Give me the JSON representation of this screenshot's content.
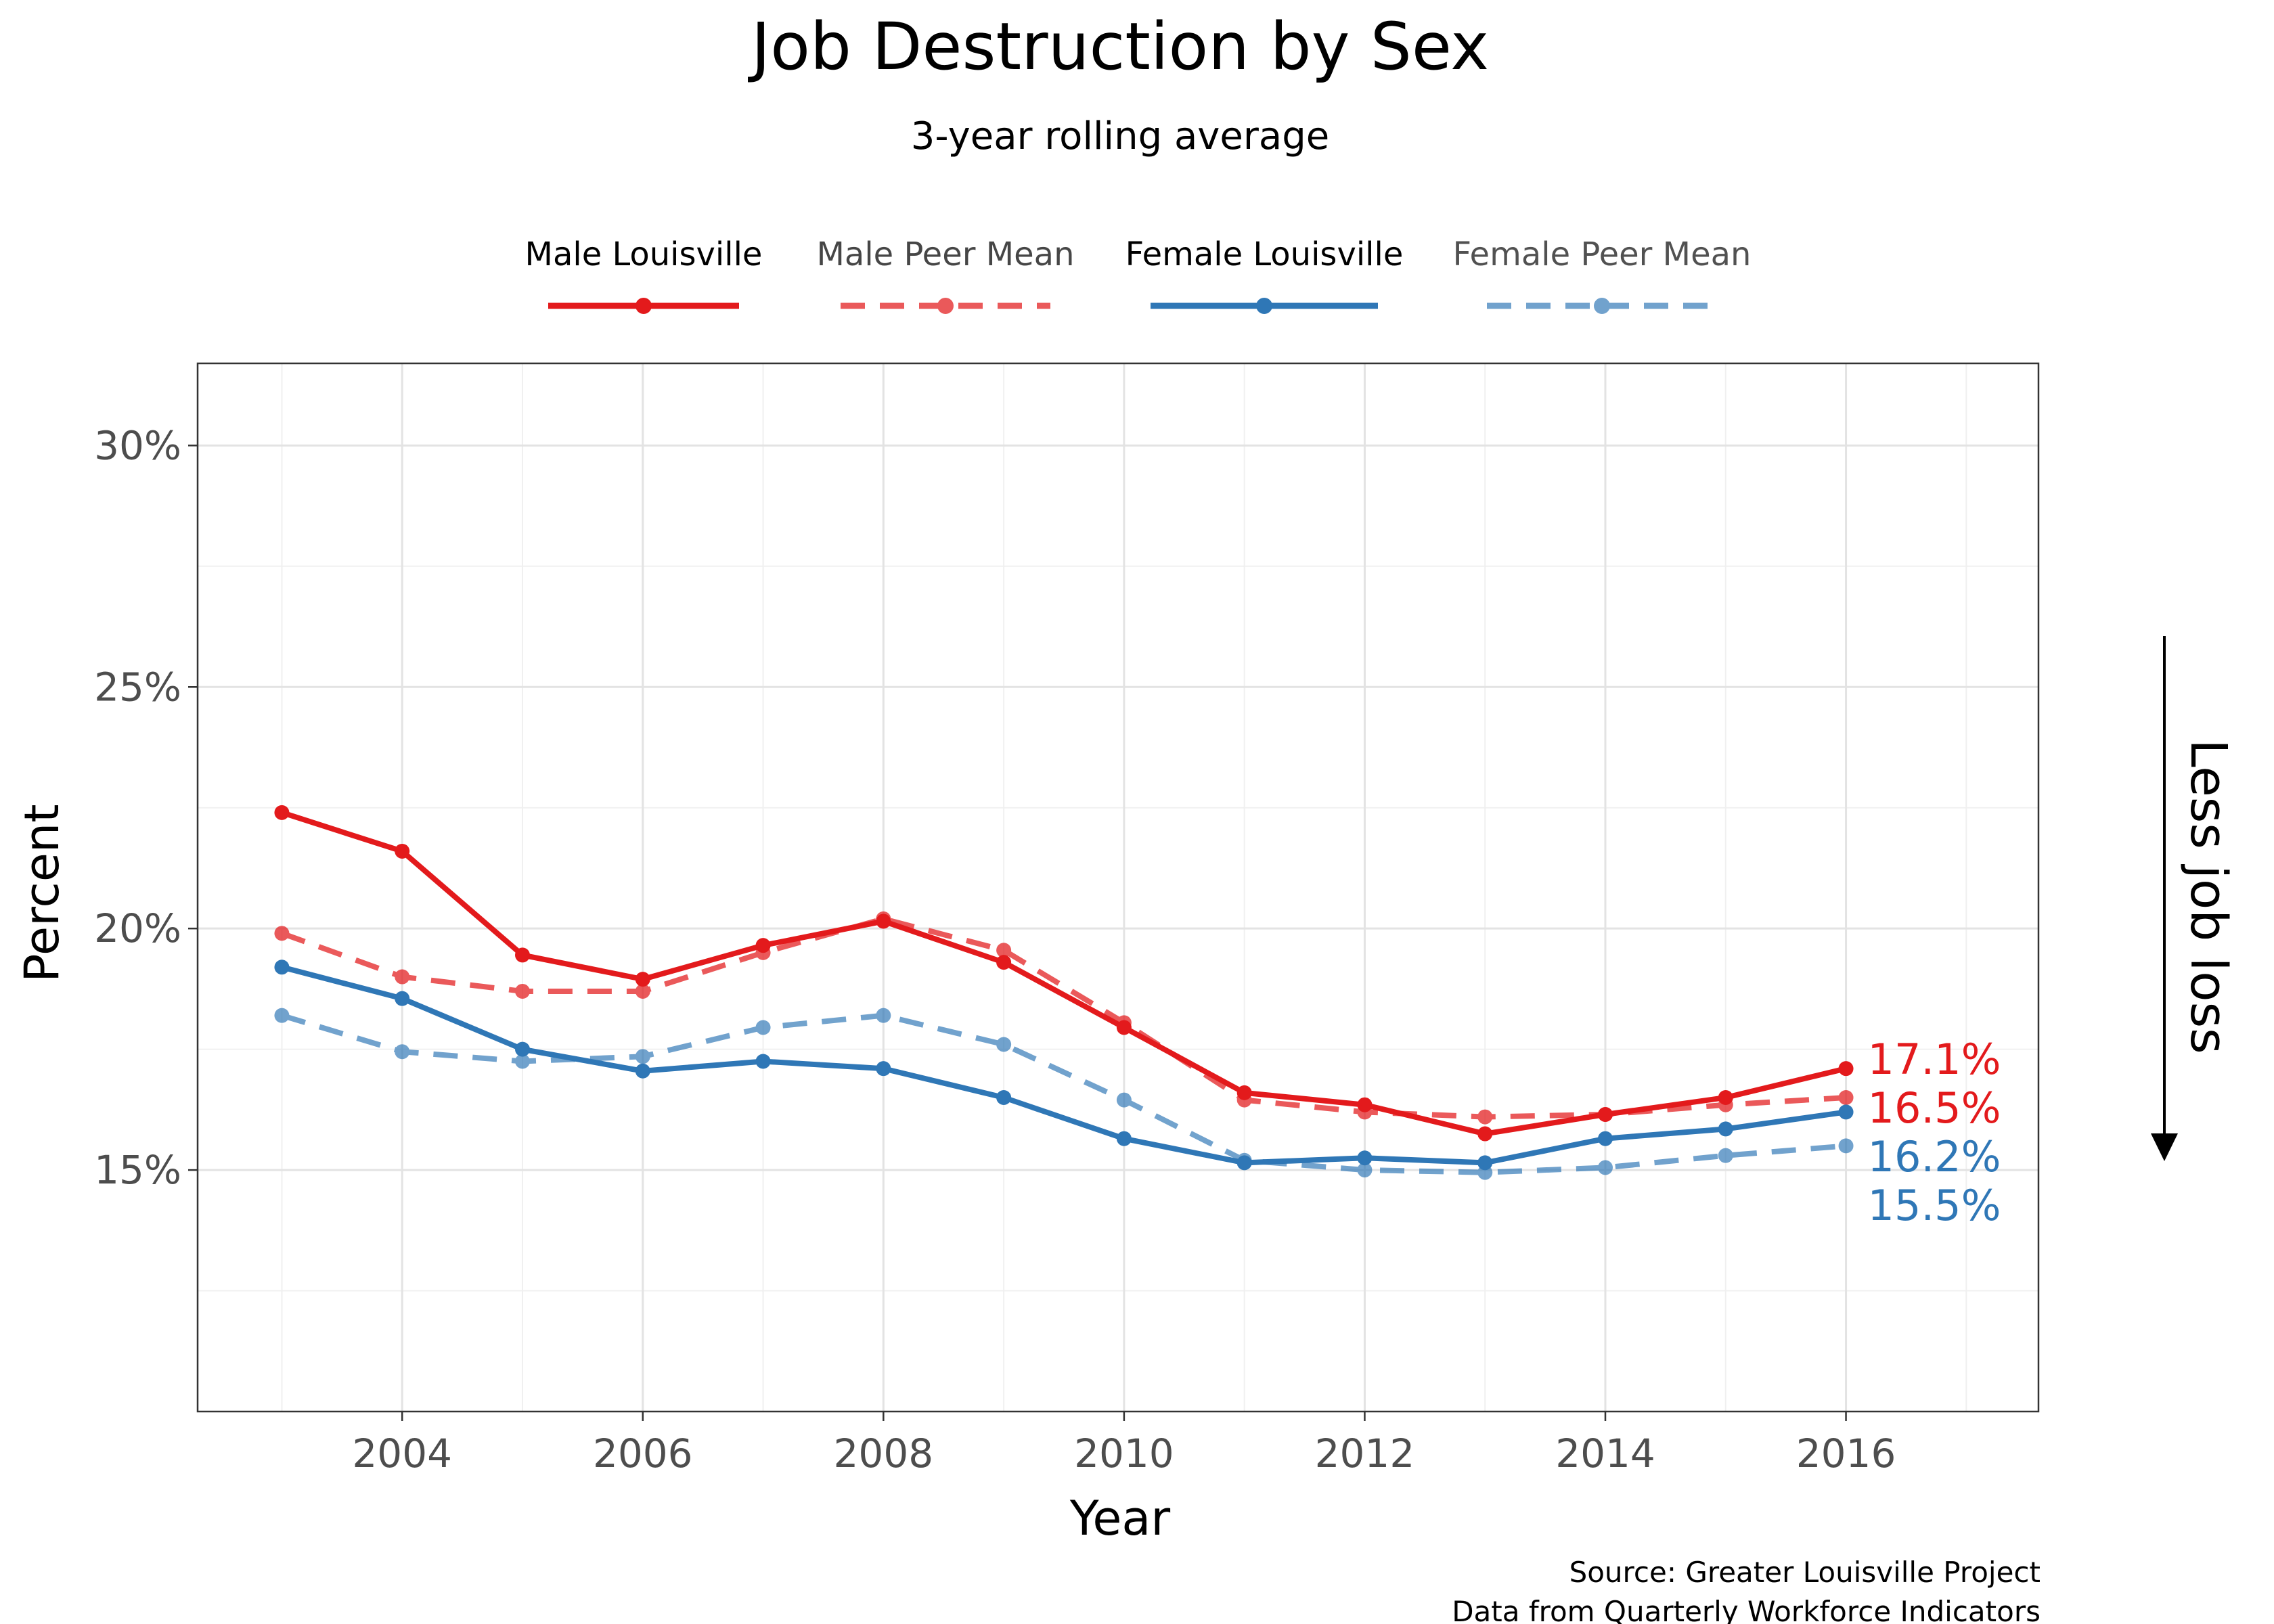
{
  "chart_data": {
    "type": "line",
    "title": "Job Destruction by Sex",
    "subtitle": "3-year rolling average",
    "xlabel": "Year",
    "ylabel": "Percent",
    "xlim": [
      2002.3,
      2017.6
    ],
    "ylim": [
      10.0,
      31.7
    ],
    "x_ticks": [
      2004,
      2006,
      2008,
      2010,
      2012,
      2014,
      2016
    ],
    "x_tick_labels": [
      "2004",
      "2006",
      "2008",
      "2010",
      "2012",
      "2014",
      "2016"
    ],
    "y_ticks": [
      15,
      20,
      25,
      30
    ],
    "y_tick_labels": [
      "15%",
      "20%",
      "25%",
      "30%"
    ],
    "y_minor_ticks": [
      12.5,
      17.5,
      22.5,
      27.5
    ],
    "x_minor_ticks": [
      2003,
      2005,
      2007,
      2009,
      2011,
      2013,
      2015,
      2017
    ],
    "grid": true,
    "legend_position": "top",
    "x": [
      2003,
      2004,
      2005,
      2006,
      2007,
      2008,
      2009,
      2010,
      2011,
      2012,
      2013,
      2014,
      2015,
      2016
    ],
    "series": [
      {
        "name": "Male Louisville",
        "color": "#e31a1c",
        "dash": "solid",
        "opacity": 1.0,
        "values": [
          22.4,
          21.6,
          19.45,
          18.95,
          19.65,
          20.15,
          19.3,
          17.95,
          16.6,
          16.35,
          15.75,
          16.15,
          16.5,
          17.1
        ]
      },
      {
        "name": "Male Peer Mean",
        "color": "#e31a1c",
        "dash": "dashed",
        "opacity": 0.72,
        "values": [
          19.9,
          19.0,
          18.7,
          18.7,
          19.5,
          20.2,
          19.55,
          18.05,
          16.45,
          16.2,
          16.1,
          16.15,
          16.35,
          16.5
        ]
      },
      {
        "name": "Female Louisville",
        "color": "#2f77b6",
        "dash": "solid",
        "opacity": 1.0,
        "values": [
          19.2,
          18.55,
          17.5,
          17.05,
          17.25,
          17.1,
          16.5,
          15.65,
          15.15,
          15.25,
          15.15,
          15.65,
          15.85,
          16.2
        ]
      },
      {
        "name": "Female Peer Mean",
        "color": "#2f77b6",
        "dash": "dashed",
        "opacity": 0.68,
        "values": [
          18.2,
          17.45,
          17.25,
          17.35,
          17.95,
          18.2,
          17.6,
          16.45,
          15.2,
          15.0,
          14.95,
          15.05,
          15.3,
          15.5
        ]
      }
    ],
    "end_labels": [
      {
        "text": "17.1%",
        "color": "#e31a1c"
      },
      {
        "text": "16.5%",
        "color": "#e31a1c"
      },
      {
        "text": "16.2%",
        "color": "#2f77b6"
      },
      {
        "text": "15.5%",
        "color": "#2f77b6"
      }
    ],
    "side_annotation": "Less job loss",
    "caption_lines": [
      "Source: Greater Louisville Project",
      "Data from Quarterly Workforce Indicators"
    ]
  }
}
